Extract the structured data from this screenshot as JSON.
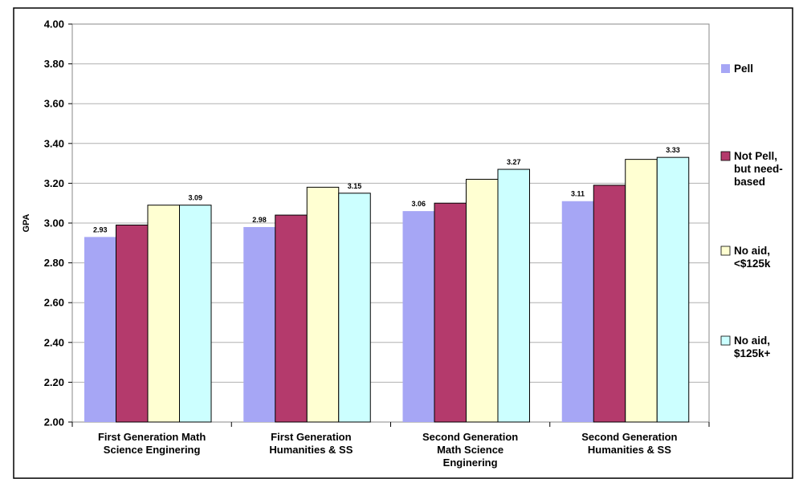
{
  "chart_data": {
    "type": "bar",
    "title": "",
    "xlabel": "",
    "ylabel": "GPA",
    "ylim": [
      2.0,
      4.0
    ],
    "yticks": [
      "2.00",
      "2.20",
      "2.40",
      "2.60",
      "2.80",
      "3.00",
      "3.20",
      "3.40",
      "3.60",
      "3.80",
      "4.00"
    ],
    "grid": true,
    "legend_position": "right",
    "categories": [
      [
        "First Generation Math",
        "Science Enginering"
      ],
      [
        "First Generation",
        "Humanities & SS"
      ],
      [
        "Second Generation",
        "Math Science",
        "Enginering"
      ],
      [
        "Second Generation",
        "Humanities & SS"
      ]
    ],
    "series": [
      {
        "name": [
          "Pell"
        ],
        "color": "#a6a6f5",
        "values": [
          2.93,
          2.98,
          3.06,
          3.11
        ]
      },
      {
        "name": [
          "Not Pell,",
          "but need-",
          "based"
        ],
        "color": "#b43a6c",
        "values": [
          2.99,
          3.04,
          3.1,
          3.19
        ]
      },
      {
        "name": [
          "No aid,",
          "<$125k"
        ],
        "color": "#ffffd2",
        "values": [
          3.09,
          3.18,
          3.22,
          3.32
        ]
      },
      {
        "name": [
          "No aid,",
          "$125k+"
        ],
        "color": "#ccffff",
        "values": [
          3.09,
          3.15,
          3.27,
          3.33
        ]
      }
    ],
    "data_labels": [
      {
        "category": 0,
        "series": 0,
        "text": "2.93"
      },
      {
        "category": 0,
        "series": 3,
        "text": "3.09"
      },
      {
        "category": 1,
        "series": 0,
        "text": "2.98"
      },
      {
        "category": 1,
        "series": 3,
        "text": "3.15"
      },
      {
        "category": 2,
        "series": 0,
        "text": "3.06"
      },
      {
        "category": 2,
        "series": 3,
        "text": "3.27"
      },
      {
        "category": 3,
        "series": 0,
        "text": "3.11"
      },
      {
        "category": 3,
        "series": 3,
        "text": "3.33"
      }
    ]
  }
}
